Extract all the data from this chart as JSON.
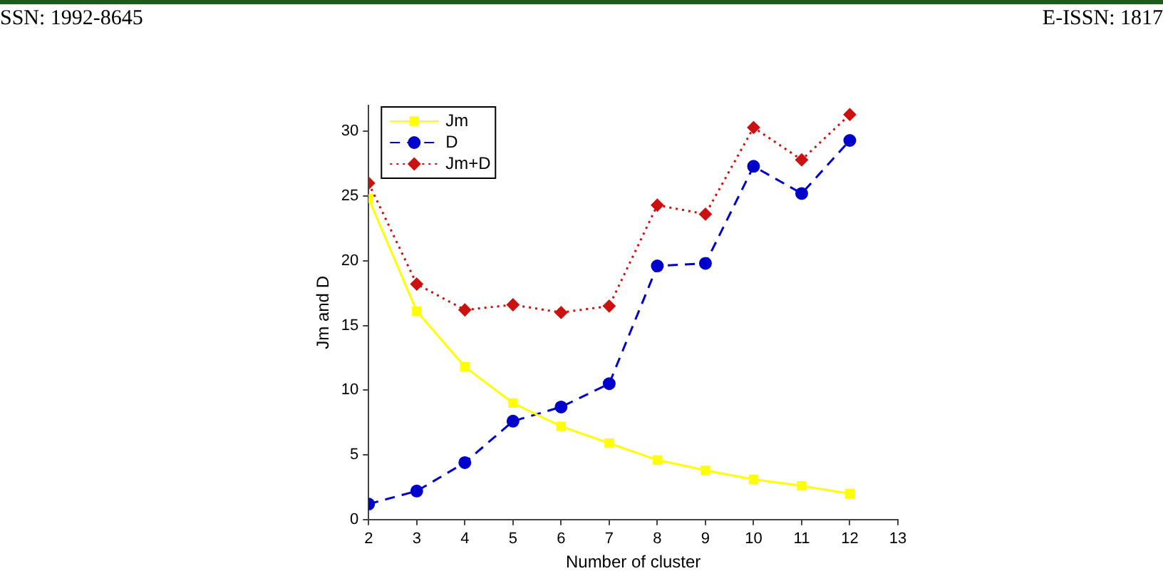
{
  "chart_data": {
    "type": "line",
    "xlabel": "Number of cluster",
    "ylabel": "Jm and D",
    "x": [
      2,
      3,
      4,
      5,
      6,
      7,
      8,
      9,
      10,
      11,
      12
    ],
    "series": [
      {
        "name": "Jm",
        "color": "#ffff00",
        "marker": "square",
        "line_style": "solid",
        "values": [
          24.8,
          16.1,
          11.8,
          9.0,
          7.2,
          5.9,
          4.6,
          3.8,
          3.1,
          2.6,
          2.0
        ]
      },
      {
        "name": "D",
        "color": "#0000cc",
        "marker": "circle",
        "line_style": "dashed",
        "values": [
          1.2,
          2.2,
          4.4,
          7.6,
          8.7,
          10.5,
          19.6,
          19.8,
          27.3,
          25.2,
          29.3
        ]
      },
      {
        "name": "Jm+D",
        "color": "#cc1111",
        "marker": "diamond",
        "line_style": "dotted",
        "values": [
          26.0,
          18.2,
          16.2,
          16.6,
          16.0,
          16.5,
          24.3,
          23.6,
          30.3,
          27.8,
          31.3
        ]
      }
    ],
    "xlim": [
      2,
      13
    ],
    "xticks": [
      2,
      3,
      4,
      5,
      6,
      7,
      8,
      9,
      10,
      11,
      12,
      13
    ],
    "ylim": [
      0,
      32
    ],
    "yticks": [
      0,
      5,
      10,
      15,
      20,
      25,
      30
    ],
    "grid": false,
    "legend": "top left",
    "annotations": [
      "SSN: 1992-8645",
      "E-ISSN: 1817"
    ]
  }
}
